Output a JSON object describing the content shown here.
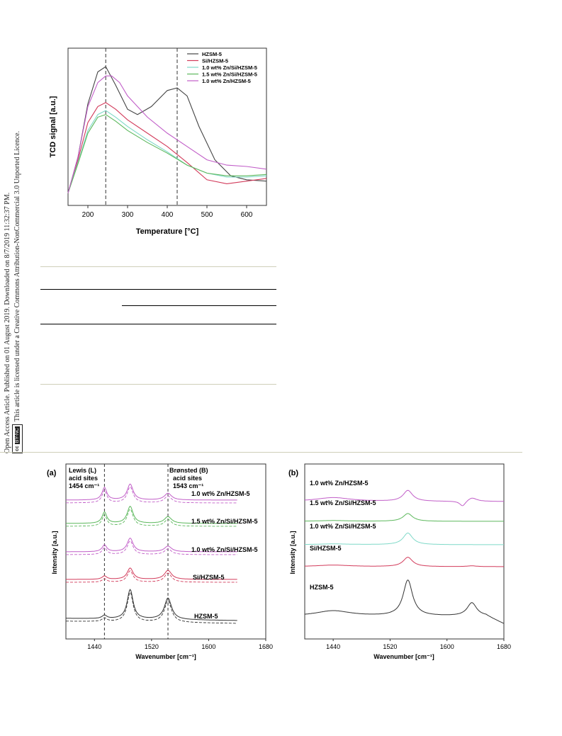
{
  "sidebar": {
    "line1": "Open Access Article. Published on 01 August 2019. Downloaded on 8/7/2019 11:32:37 PM.",
    "line2": "This article is licensed under a Creative Commons Attribution-NonCommercial 3.0 Unported Licence.",
    "badge_cc": "cc",
    "badge_by": "BY-NC"
  },
  "chart_data": [
    {
      "type": "line",
      "xlabel": "Temperature [°C]",
      "ylabel": "TCD signal [a.u.]",
      "xlim": [
        150,
        650
      ],
      "xticks": [
        200,
        300,
        400,
        500,
        600
      ],
      "legend_position": "top-right",
      "vlines": [
        245,
        425
      ],
      "series": [
        {
          "name": "HZSM-5",
          "color": "#444444",
          "x": [
            150,
            175,
            200,
            225,
            245,
            270,
            300,
            325,
            360,
            400,
            425,
            450,
            480,
            520,
            560,
            600,
            650
          ],
          "y": [
            0.05,
            0.32,
            0.72,
            0.96,
            1.0,
            0.86,
            0.68,
            0.64,
            0.7,
            0.82,
            0.84,
            0.78,
            0.55,
            0.3,
            0.18,
            0.15,
            0.14
          ]
        },
        {
          "name": "Si/HZSM-5",
          "color": "#d23a5a",
          "x": [
            150,
            175,
            200,
            225,
            245,
            270,
            300,
            350,
            400,
            450,
            500,
            550,
            600,
            650
          ],
          "y": [
            0.05,
            0.3,
            0.58,
            0.7,
            0.73,
            0.68,
            0.6,
            0.5,
            0.4,
            0.28,
            0.15,
            0.12,
            0.14,
            0.16
          ]
        },
        {
          "name": "1.0 wt% Zn/Si/HZSM-5",
          "color": "#7fd9c8",
          "x": [
            150,
            175,
            200,
            225,
            245,
            270,
            300,
            350,
            400,
            450,
            500,
            550,
            600,
            650
          ],
          "y": [
            0.05,
            0.28,
            0.52,
            0.64,
            0.67,
            0.62,
            0.55,
            0.45,
            0.36,
            0.26,
            0.2,
            0.17,
            0.17,
            0.18
          ]
        },
        {
          "name": "1.5 wt% Zn/Si/HZSM-5",
          "color": "#5cb85c",
          "x": [
            150,
            175,
            200,
            225,
            245,
            270,
            300,
            350,
            400,
            450,
            500,
            550,
            600,
            650
          ],
          "y": [
            0.05,
            0.27,
            0.5,
            0.62,
            0.64,
            0.59,
            0.52,
            0.43,
            0.35,
            0.26,
            0.2,
            0.18,
            0.18,
            0.19
          ]
        },
        {
          "name": "1.0 wt% Zn/HZSM-5",
          "color": "#c15ec8",
          "x": [
            150,
            175,
            200,
            225,
            245,
            260,
            280,
            300,
            350,
            400,
            450,
            500,
            550,
            600,
            650
          ],
          "y": [
            0.05,
            0.32,
            0.7,
            0.88,
            0.93,
            0.93,
            0.88,
            0.78,
            0.62,
            0.5,
            0.4,
            0.3,
            0.26,
            0.25,
            0.23
          ]
        }
      ]
    },
    {
      "type": "line",
      "panel_label": "(a)",
      "xlabel": "Wavenumber [cm⁻¹]",
      "ylabel": "Intensity [a.u.]",
      "xlim": [
        1400,
        1680
      ],
      "xticks": [
        1440,
        1520,
        1600,
        1680
      ],
      "vlines": [
        1454,
        1543
      ],
      "annotations": [
        "Lewis (L)",
        "acid sites",
        "1454 cm⁻¹",
        "Brønsted (B)",
        "acid sites",
        "1543 cm⁻¹"
      ],
      "peaks": [
        1454,
        1490,
        1543
      ],
      "series": [
        {
          "name": "1.0 wt% Zn/HZSM-5",
          "color": "#c15ec8",
          "peak_heights": [
            0.55,
            0.7,
            0.3
          ]
        },
        {
          "name": "1.5 wt% Zn/Si/HZSM-5",
          "color": "#5cb85c",
          "peak_heights": [
            0.5,
            0.75,
            0.3
          ]
        },
        {
          "name": "1.0 wt% Zn/Si/HZSM-5",
          "color": "#c15ec8",
          "peak_heights": [
            0.3,
            0.6,
            0.25
          ]
        },
        {
          "name": "Si/HZSM-5",
          "color": "#d23a5a",
          "peak_heights": [
            0.15,
            0.5,
            0.4
          ]
        },
        {
          "name": "HZSM-5",
          "color": "#333333",
          "peak_heights": [
            0.15,
            1.3,
            0.95
          ]
        }
      ]
    },
    {
      "type": "line",
      "panel_label": "(b)",
      "xlabel": "Wavenumber [cm⁻¹]",
      "ylabel": "Intensity [a.u.]",
      "xlim": [
        1400,
        1680
      ],
      "xticks": [
        1440,
        1520,
        1600,
        1680
      ],
      "series": [
        {
          "name": "1.0 wt% Zn/HZSM-5",
          "color": "#c15ec8"
        },
        {
          "name": "1.5 wt% Zn/Si/HZSM-5",
          "color": "#5cb85c"
        },
        {
          "name": "1.0 wt% Zn/Si/HZSM-5",
          "color": "#7fd9c8"
        },
        {
          "name": "Si/HZSM-5",
          "color": "#d23a5a"
        },
        {
          "name": "HZSM-5",
          "color": "#333333"
        }
      ]
    }
  ]
}
